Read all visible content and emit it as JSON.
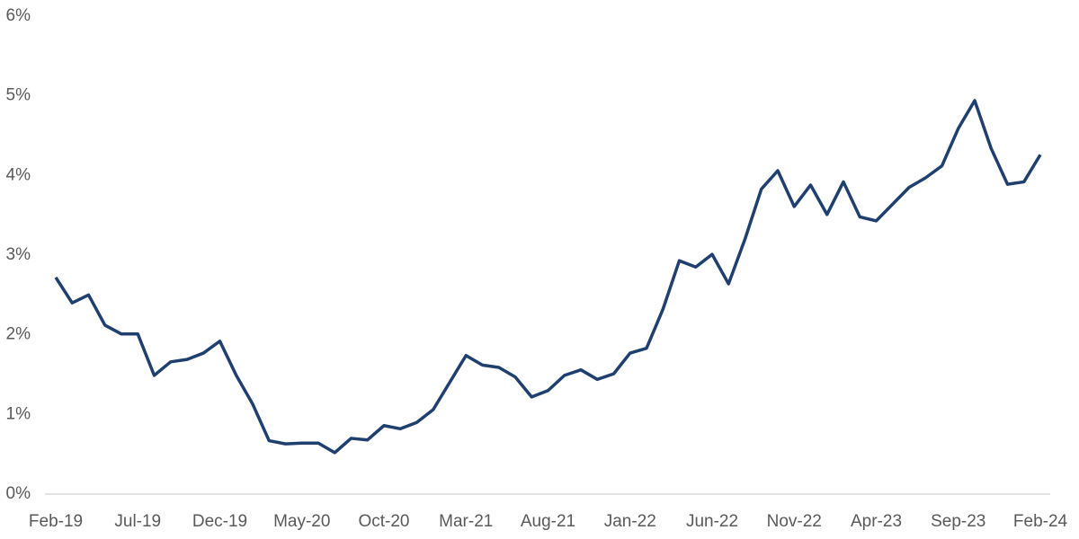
{
  "chart_data": {
    "type": "line",
    "categories": [
      "Feb-19",
      null,
      null,
      null,
      null,
      "Jul-19",
      null,
      null,
      null,
      null,
      "Dec-19",
      null,
      null,
      null,
      null,
      "May-20",
      null,
      null,
      null,
      null,
      "Oct-20",
      null,
      null,
      null,
      null,
      "Mar-21",
      null,
      null,
      null,
      null,
      "Aug-21",
      null,
      null,
      null,
      null,
      "Jan-22",
      null,
      null,
      null,
      null,
      "Jun-22",
      null,
      null,
      null,
      null,
      "Nov-22",
      null,
      null,
      null,
      null,
      "Apr-23",
      null,
      null,
      null,
      null,
      "Sep-23",
      null,
      null,
      null,
      null,
      "Feb-24"
    ],
    "values": [
      2.72,
      2.4,
      2.5,
      2.12,
      2.01,
      2.01,
      1.49,
      1.66,
      1.69,
      1.77,
      1.92,
      1.49,
      1.13,
      0.67,
      0.63,
      0.64,
      0.64,
      0.52,
      0.7,
      0.68,
      0.86,
      0.82,
      0.9,
      1.06,
      1.4,
      1.74,
      1.62,
      1.59,
      1.47,
      1.22,
      1.3,
      1.49,
      1.56,
      1.44,
      1.51,
      1.77,
      1.83,
      2.32,
      2.93,
      2.85,
      3.01,
      2.64,
      3.2,
      3.83,
      4.06,
      3.61,
      3.88,
      3.51,
      3.92,
      3.48,
      3.43,
      3.64,
      3.85,
      3.97,
      4.12,
      4.59,
      4.94,
      4.34,
      3.89,
      3.92,
      4.26
    ],
    "color": "#1f3f6f",
    "ylim": [
      0,
      6
    ],
    "yticks": [
      {
        "value": 0,
        "label": "0%"
      },
      {
        "value": 1,
        "label": "1%"
      },
      {
        "value": 2,
        "label": "2%"
      },
      {
        "value": 3,
        "label": "3%"
      },
      {
        "value": 4,
        "label": "4%"
      },
      {
        "value": 5,
        "label": "5%"
      },
      {
        "value": 6,
        "label": "6%"
      }
    ],
    "grid": false
  }
}
